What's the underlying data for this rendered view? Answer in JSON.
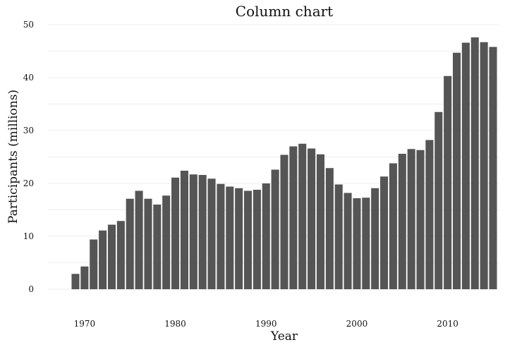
{
  "chart_data": {
    "type": "bar",
    "title": "Column chart",
    "xlabel": "Year",
    "ylabel": "Participants (millions)",
    "x": [
      1969,
      1970,
      1971,
      1972,
      1973,
      1974,
      1975,
      1976,
      1977,
      1978,
      1979,
      1980,
      1981,
      1982,
      1983,
      1984,
      1985,
      1986,
      1987,
      1988,
      1989,
      1990,
      1991,
      1992,
      1993,
      1994,
      1995,
      1996,
      1997,
      1998,
      1999,
      2000,
      2001,
      2002,
      2003,
      2004,
      2005,
      2006,
      2007,
      2008,
      2009,
      2010,
      2011,
      2012,
      2013,
      2014,
      2015
    ],
    "values": [
      2.9,
      4.3,
      9.4,
      11.1,
      12.2,
      12.9,
      17.1,
      18.6,
      17.1,
      16.0,
      17.7,
      21.1,
      22.4,
      21.7,
      21.6,
      20.9,
      19.9,
      19.4,
      19.1,
      18.6,
      18.8,
      20.0,
      22.6,
      25.4,
      27.0,
      27.5,
      26.6,
      25.5,
      22.9,
      19.8,
      18.2,
      17.2,
      17.3,
      19.1,
      21.3,
      23.8,
      25.6,
      26.5,
      26.3,
      28.2,
      33.5,
      40.3,
      44.7,
      46.6,
      47.6,
      46.7,
      45.8
    ],
    "xticks": [
      "1970",
      "1980",
      "1990",
      "2000",
      "2010"
    ],
    "yticks": [
      "0",
      "10",
      "20",
      "30",
      "40",
      "50"
    ],
    "ylim": [
      0,
      50
    ],
    "grid": true,
    "bar_color": "#555555"
  }
}
